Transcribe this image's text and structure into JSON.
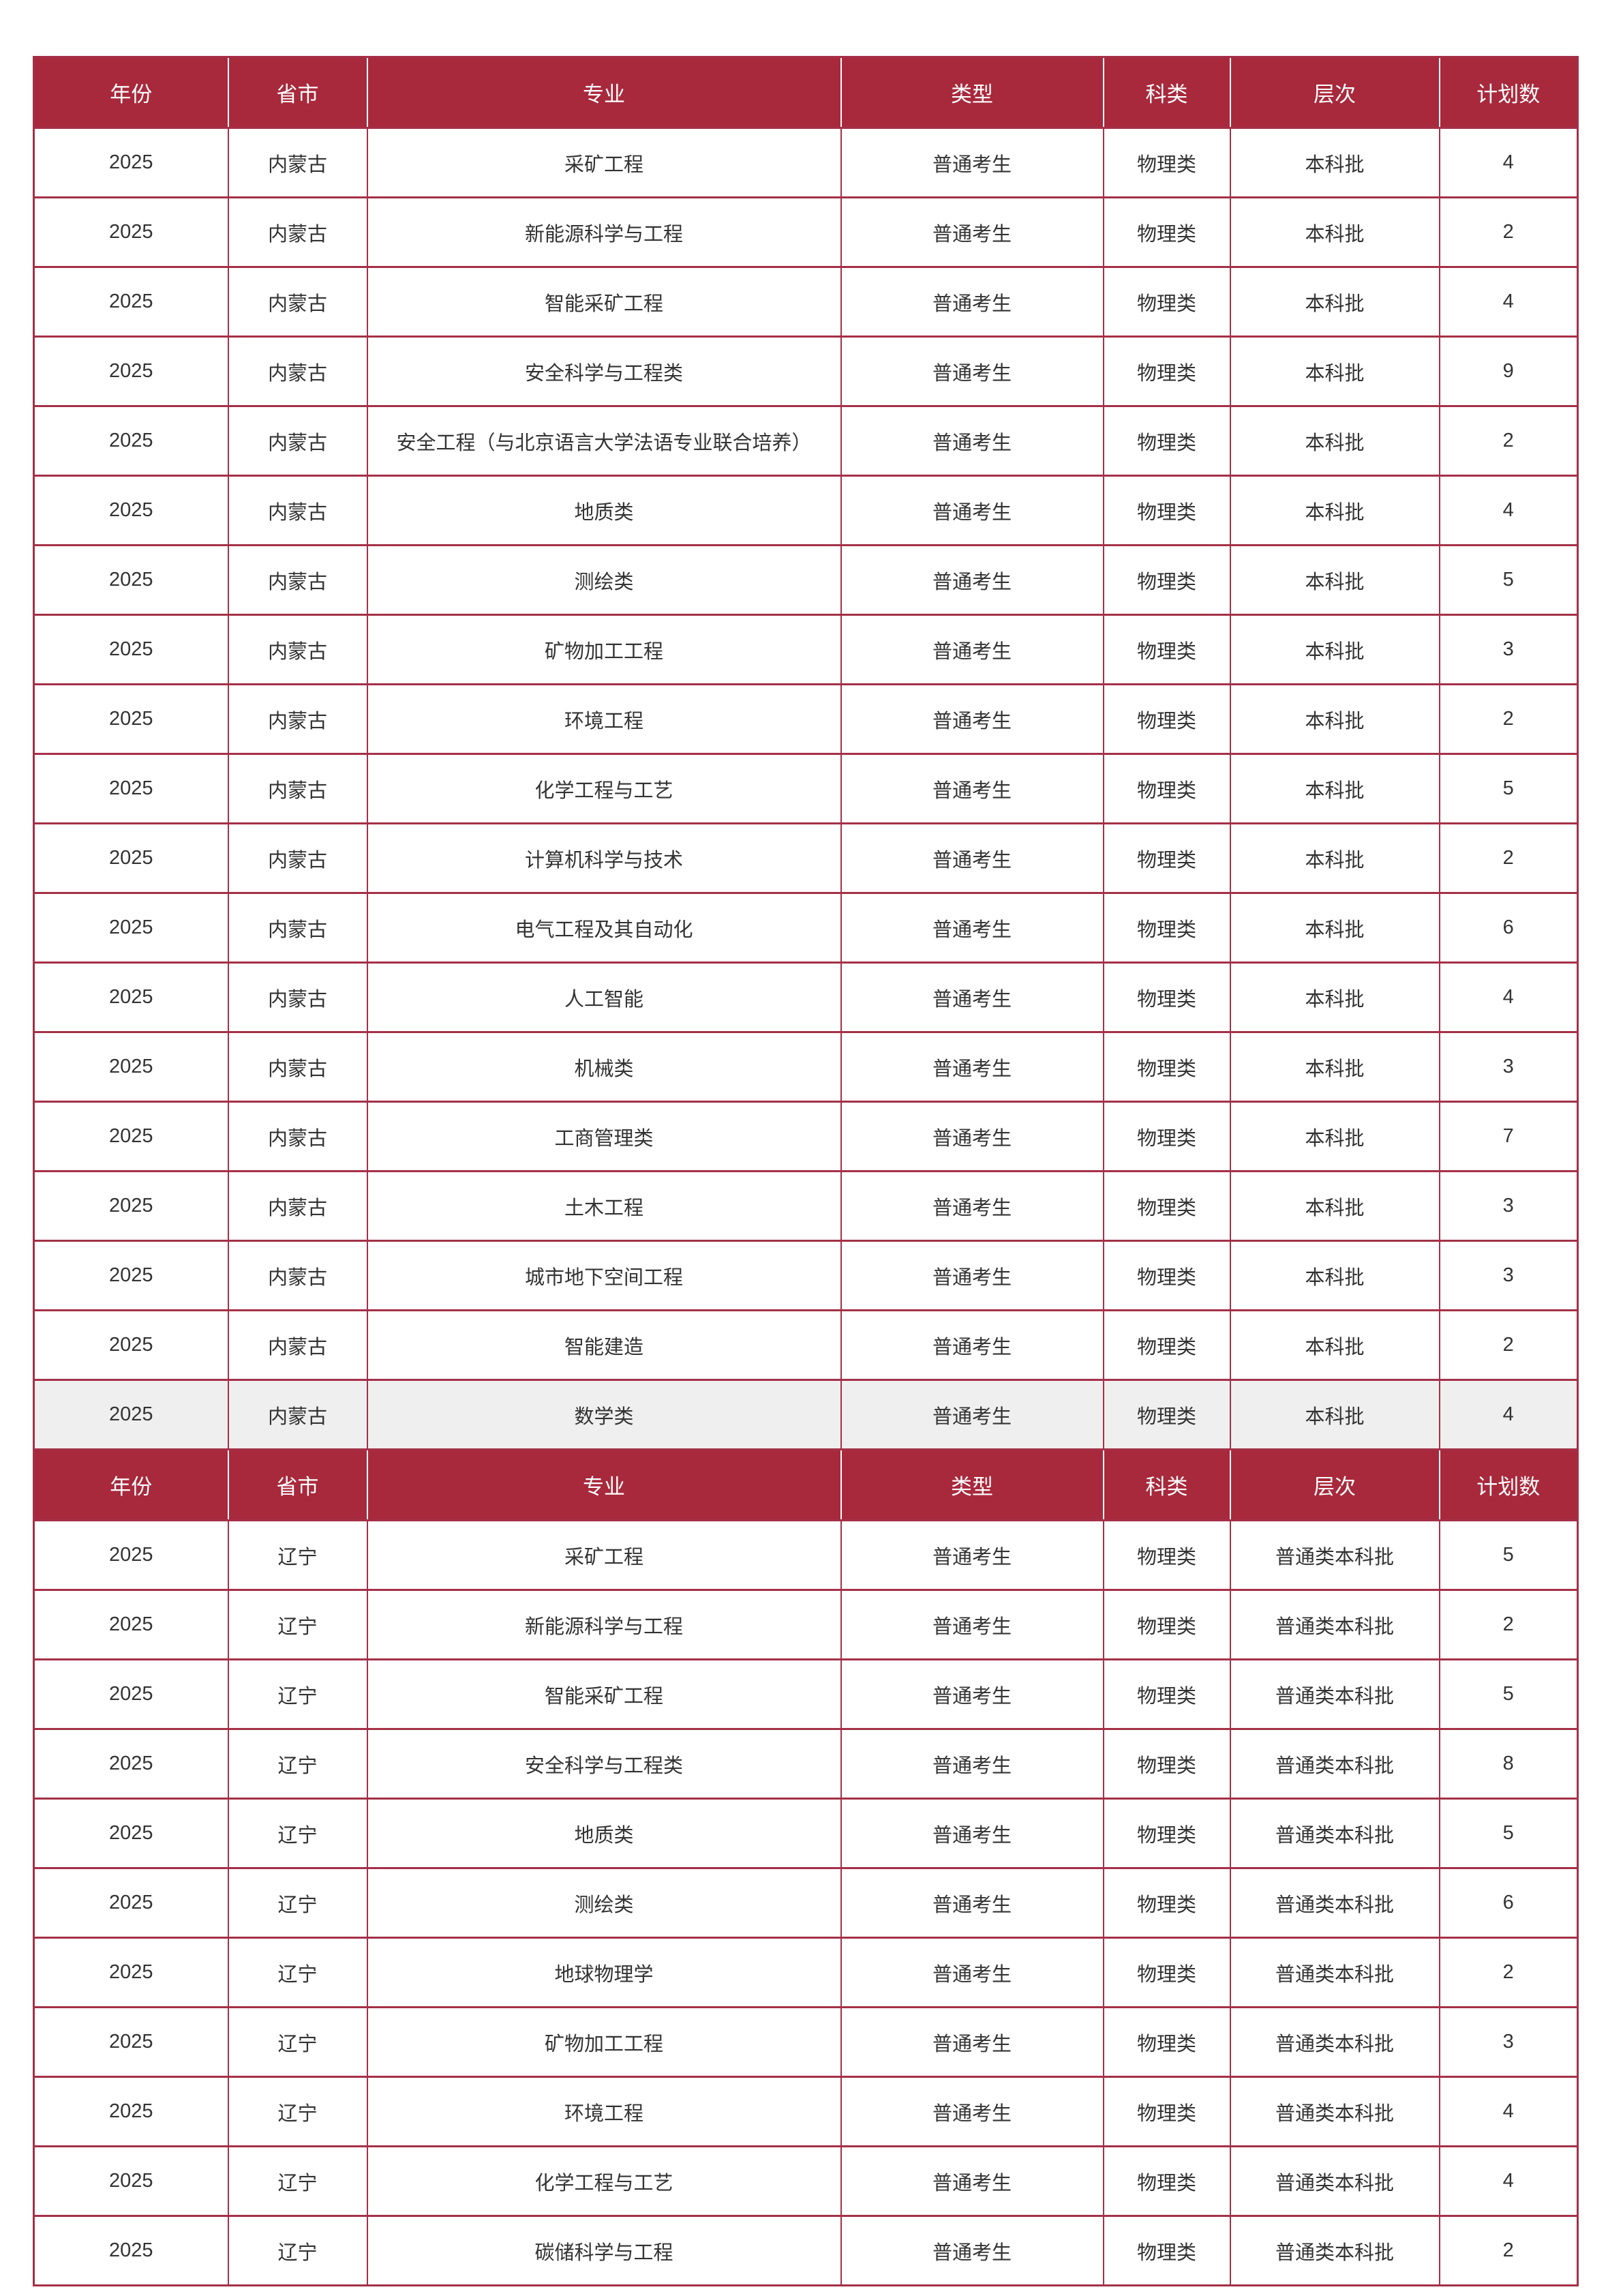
{
  "theme": {
    "accent": "#a8293c",
    "line": "#a43047",
    "header_text": "#ffffff",
    "text": "#333333",
    "highlight_row": "#efefef",
    "page_bg": "#ffffff"
  },
  "table": {
    "columns": [
      {
        "key": "year",
        "label": "年份"
      },
      {
        "key": "province",
        "label": "省市"
      },
      {
        "key": "major",
        "label": "专业"
      },
      {
        "key": "type",
        "label": "类型"
      },
      {
        "key": "subject",
        "label": "科类"
      },
      {
        "key": "level",
        "label": "层次"
      },
      {
        "key": "count",
        "label": "计划数"
      }
    ],
    "sections": [
      {
        "rows": [
          {
            "year": "2025",
            "province": "内蒙古",
            "major": "采矿工程",
            "type": "普通考生",
            "subject": "物理类",
            "level": "本科批",
            "count": "4",
            "highlight": false
          },
          {
            "year": "2025",
            "province": "内蒙古",
            "major": "新能源科学与工程",
            "type": "普通考生",
            "subject": "物理类",
            "level": "本科批",
            "count": "2",
            "highlight": false
          },
          {
            "year": "2025",
            "province": "内蒙古",
            "major": "智能采矿工程",
            "type": "普通考生",
            "subject": "物理类",
            "level": "本科批",
            "count": "4",
            "highlight": false
          },
          {
            "year": "2025",
            "province": "内蒙古",
            "major": "安全科学与工程类",
            "type": "普通考生",
            "subject": "物理类",
            "level": "本科批",
            "count": "9",
            "highlight": false
          },
          {
            "year": "2025",
            "province": "内蒙古",
            "major": "安全工程（与北京语言大学法语专业联合培养）",
            "type": "普通考生",
            "subject": "物理类",
            "level": "本科批",
            "count": "2",
            "highlight": false
          },
          {
            "year": "2025",
            "province": "内蒙古",
            "major": "地质类",
            "type": "普通考生",
            "subject": "物理类",
            "level": "本科批",
            "count": "4",
            "highlight": false
          },
          {
            "year": "2025",
            "province": "内蒙古",
            "major": "测绘类",
            "type": "普通考生",
            "subject": "物理类",
            "level": "本科批",
            "count": "5",
            "highlight": false
          },
          {
            "year": "2025",
            "province": "内蒙古",
            "major": "矿物加工工程",
            "type": "普通考生",
            "subject": "物理类",
            "level": "本科批",
            "count": "3",
            "highlight": false
          },
          {
            "year": "2025",
            "province": "内蒙古",
            "major": "环境工程",
            "type": "普通考生",
            "subject": "物理类",
            "level": "本科批",
            "count": "2",
            "highlight": false
          },
          {
            "year": "2025",
            "province": "内蒙古",
            "major": "化学工程与工艺",
            "type": "普通考生",
            "subject": "物理类",
            "level": "本科批",
            "count": "5",
            "highlight": false
          },
          {
            "year": "2025",
            "province": "内蒙古",
            "major": "计算机科学与技术",
            "type": "普通考生",
            "subject": "物理类",
            "level": "本科批",
            "count": "2",
            "highlight": false
          },
          {
            "year": "2025",
            "province": "内蒙古",
            "major": "电气工程及其自动化",
            "type": "普通考生",
            "subject": "物理类",
            "level": "本科批",
            "count": "6",
            "highlight": false
          },
          {
            "year": "2025",
            "province": "内蒙古",
            "major": "人工智能",
            "type": "普通考生",
            "subject": "物理类",
            "level": "本科批",
            "count": "4",
            "highlight": false
          },
          {
            "year": "2025",
            "province": "内蒙古",
            "major": "机械类",
            "type": "普通考生",
            "subject": "物理类",
            "level": "本科批",
            "count": "3",
            "highlight": false
          },
          {
            "year": "2025",
            "province": "内蒙古",
            "major": "工商管理类",
            "type": "普通考生",
            "subject": "物理类",
            "level": "本科批",
            "count": "7",
            "highlight": false
          },
          {
            "year": "2025",
            "province": "内蒙古",
            "major": "土木工程",
            "type": "普通考生",
            "subject": "物理类",
            "level": "本科批",
            "count": "3",
            "highlight": false
          },
          {
            "year": "2025",
            "province": "内蒙古",
            "major": "城市地下空间工程",
            "type": "普通考生",
            "subject": "物理类",
            "level": "本科批",
            "count": "3",
            "highlight": false
          },
          {
            "year": "2025",
            "province": "内蒙古",
            "major": "智能建造",
            "type": "普通考生",
            "subject": "物理类",
            "level": "本科批",
            "count": "2",
            "highlight": false
          },
          {
            "year": "2025",
            "province": "内蒙古",
            "major": "数学类",
            "type": "普通考生",
            "subject": "物理类",
            "level": "本科批",
            "count": "4",
            "highlight": true
          }
        ]
      },
      {
        "rows": [
          {
            "year": "2025",
            "province": "辽宁",
            "major": "采矿工程",
            "type": "普通考生",
            "subject": "物理类",
            "level": "普通类本科批",
            "count": "5",
            "highlight": false
          },
          {
            "year": "2025",
            "province": "辽宁",
            "major": "新能源科学与工程",
            "type": "普通考生",
            "subject": "物理类",
            "level": "普通类本科批",
            "count": "2",
            "highlight": false
          },
          {
            "year": "2025",
            "province": "辽宁",
            "major": "智能采矿工程",
            "type": "普通考生",
            "subject": "物理类",
            "level": "普通类本科批",
            "count": "5",
            "highlight": false
          },
          {
            "year": "2025",
            "province": "辽宁",
            "major": "安全科学与工程类",
            "type": "普通考生",
            "subject": "物理类",
            "level": "普通类本科批",
            "count": "8",
            "highlight": false
          },
          {
            "year": "2025",
            "province": "辽宁",
            "major": "地质类",
            "type": "普通考生",
            "subject": "物理类",
            "level": "普通类本科批",
            "count": "5",
            "highlight": false
          },
          {
            "year": "2025",
            "province": "辽宁",
            "major": "测绘类",
            "type": "普通考生",
            "subject": "物理类",
            "level": "普通类本科批",
            "count": "6",
            "highlight": false
          },
          {
            "year": "2025",
            "province": "辽宁",
            "major": "地球物理学",
            "type": "普通考生",
            "subject": "物理类",
            "level": "普通类本科批",
            "count": "2",
            "highlight": false
          },
          {
            "year": "2025",
            "province": "辽宁",
            "major": "矿物加工工程",
            "type": "普通考生",
            "subject": "物理类",
            "level": "普通类本科批",
            "count": "3",
            "highlight": false
          },
          {
            "year": "2025",
            "province": "辽宁",
            "major": "环境工程",
            "type": "普通考生",
            "subject": "物理类",
            "level": "普通类本科批",
            "count": "4",
            "highlight": false
          },
          {
            "year": "2025",
            "province": "辽宁",
            "major": "化学工程与工艺",
            "type": "普通考生",
            "subject": "物理类",
            "level": "普通类本科批",
            "count": "4",
            "highlight": false
          },
          {
            "year": "2025",
            "province": "辽宁",
            "major": "碳储科学与工程",
            "type": "普通考生",
            "subject": "物理类",
            "level": "普通类本科批",
            "count": "2",
            "highlight": false
          }
        ]
      }
    ]
  }
}
